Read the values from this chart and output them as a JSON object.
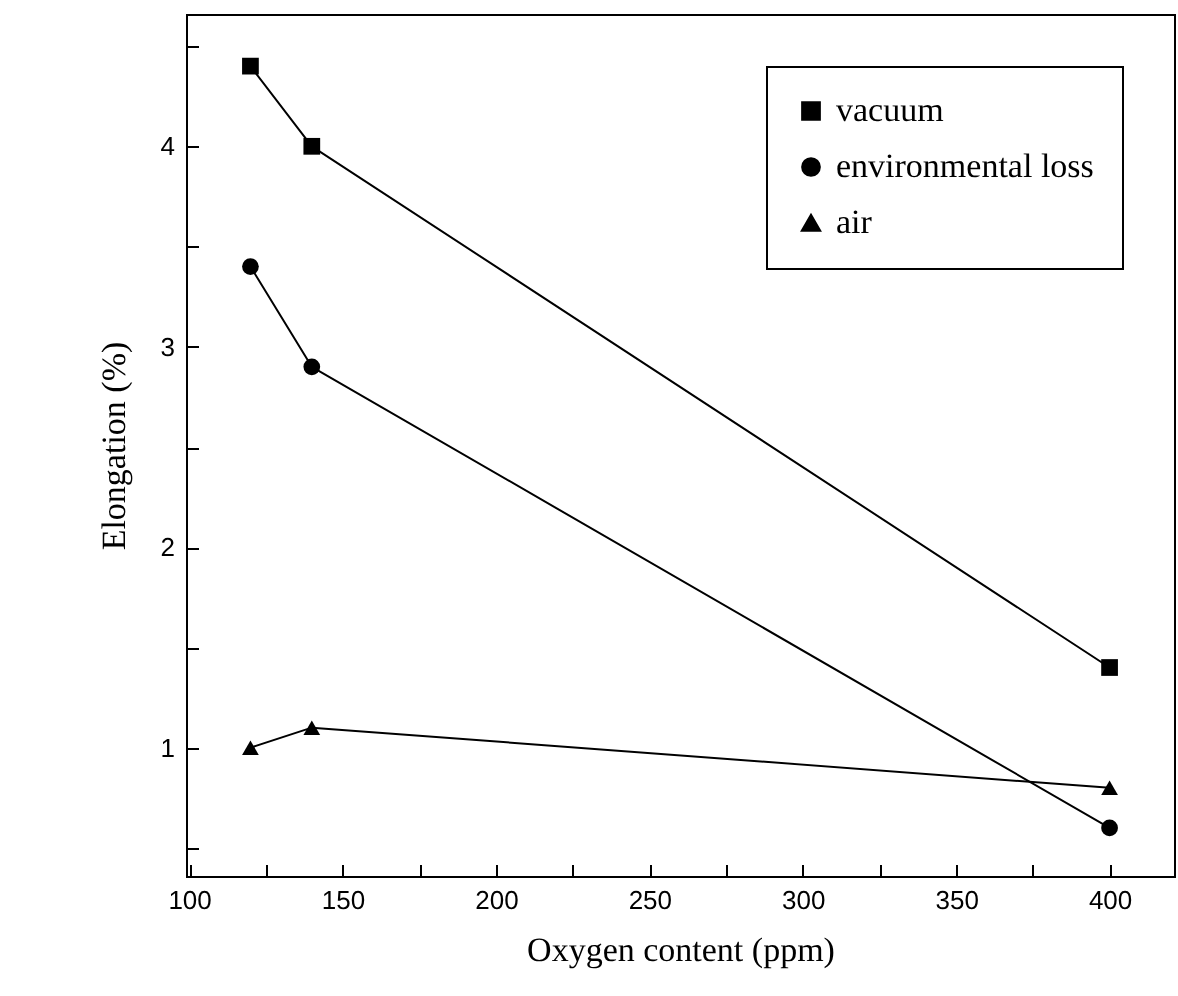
{
  "chart_data": {
    "type": "line",
    "xlabel": "Oxygen content (ppm)",
    "ylabel": "Elongation (%)",
    "x": [
      120,
      140,
      400
    ],
    "series": [
      {
        "name": "vacuum",
        "color": "#000000",
        "marker": "square",
        "values": [
          4.4,
          4.0,
          1.4
        ]
      },
      {
        "name": "environmental loss",
        "color": "#000000",
        "marker": "circle",
        "values": [
          3.4,
          2.9,
          0.6
        ]
      },
      {
        "name": "air",
        "color": "#000000",
        "marker": "triangle",
        "values": [
          1.0,
          1.1,
          0.8
        ]
      }
    ],
    "xlim": [
      99,
      421
    ],
    "xticks": [
      100,
      {
        "value": 125,
        "label": null
      },
      150,
      {
        "value": 175,
        "label": null
      },
      200,
      {
        "value": 225,
        "label": null
      },
      250,
      {
        "value": 275,
        "label": null
      },
      300,
      {
        "value": 325,
        "label": null
      },
      350,
      {
        "value": 375,
        "label": null
      },
      400
    ],
    "ylim": [
      0.36,
      4.66
    ],
    "yticks": [
      {
        "value": 0.5,
        "label": null
      },
      1,
      {
        "value": 1.5,
        "label": null
      },
      2,
      {
        "value": 2.5,
        "label": null
      },
      3,
      {
        "value": 3.5,
        "label": null
      },
      4,
      {
        "value": 4.5,
        "label": null
      }
    ],
    "grid": false,
    "legend": "top right",
    "line_style": "solid"
  }
}
